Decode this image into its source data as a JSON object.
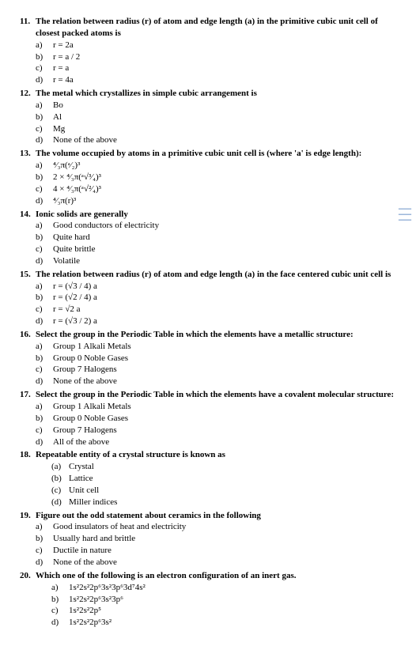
{
  "questions": [
    {
      "num": "11.",
      "stem": "The relation between radius (r) of atom and edge length (a) in the primitive cubic unit cell of closest packed atoms is",
      "opts": [
        {
          "l": "a)",
          "t": "r = 2a"
        },
        {
          "l": "b)",
          "t": "r = a / 2"
        },
        {
          "l": "c)",
          "t": "r = a"
        },
        {
          "l": "d)",
          "t": "r = 4a"
        }
      ]
    },
    {
      "num": "12.",
      "stem": "The metal which crystallizes in simple cubic arrangement is",
      "opts": [
        {
          "l": "a)",
          "t": "Bo"
        },
        {
          "l": "b)",
          "t": "Al"
        },
        {
          "l": "c)",
          "t": "Mg"
        },
        {
          "l": "d)",
          "t": "None of the above"
        }
      ]
    },
    {
      "num": "13.",
      "stem": "The volume occupied by atoms in a primitive cubic unit cell is (where 'a' is edge length):",
      "opts": [
        {
          "l": "a)",
          "t": "⁴⁄₃π(ᵃ⁄₂)³"
        },
        {
          "l": "b)",
          "t": "2 × ⁴⁄₃π(ᵃ√³⁄₄)³"
        },
        {
          "l": "c)",
          "t": "4 × ⁴⁄₃π(ᵃ√²⁄₄)³"
        },
        {
          "l": "d)",
          "t": "⁴⁄₃π(r)³"
        }
      ]
    },
    {
      "num": "14.",
      "stem": "Ionic solids are generally",
      "opts": [
        {
          "l": "a)",
          "t": "Good conductors of electricity"
        },
        {
          "l": "b)",
          "t": "Quite hard"
        },
        {
          "l": "c)",
          "t": "Quite brittle"
        },
        {
          "l": "d)",
          "t": "Volatile"
        }
      ]
    },
    {
      "num": "15.",
      "stem": "The relation between radius (r) of atom and edge length (a) in the face centered cubic unit cell is",
      "opts": [
        {
          "l": "a)",
          "t": "r = (√3 / 4) a"
        },
        {
          "l": "b)",
          "t": "r = (√2 / 4) a"
        },
        {
          "l": "c)",
          "t": "r = √2 a"
        },
        {
          "l": "d)",
          "t": "r = (√3 / 2) a"
        }
      ]
    },
    {
      "num": "16.",
      "stem": "Select the group in the Periodic Table in which the elements have a metallic structure:",
      "opts": [
        {
          "l": "a)",
          "t": "Group 1 Alkali Metals"
        },
        {
          "l": "b)",
          "t": "Group 0 Noble Gases"
        },
        {
          "l": "c)",
          "t": "Group 7 Halogens"
        },
        {
          "l": "d)",
          "t": "None of the above"
        }
      ]
    },
    {
      "num": "17.",
      "stem": "Select the group in the Periodic Table in which the elements have a covalent molecular structure:",
      "opts": [
        {
          "l": "a)",
          "t": "Group 1 Alkali Metals"
        },
        {
          "l": "b)",
          "t": "Group 0 Noble Gases"
        },
        {
          "l": "c)",
          "t": "Group 7 Halogens"
        },
        {
          "l": "d)",
          "t": "All of the above"
        }
      ]
    },
    {
      "num": "18.",
      "stem": "Repeatable entity of a crystal structure is known as",
      "opts": [
        {
          "l": "(a)",
          "t": "Crystal"
        },
        {
          "l": "(b)",
          "t": "Lattice"
        },
        {
          "l": "(c)",
          "t": "Unit cell"
        },
        {
          "l": "(d)",
          "t": "Miller indices"
        }
      ],
      "indent": true
    },
    {
      "num": "19.",
      "stem": "Figure out the odd statement about ceramics in the following",
      "opts": [
        {
          "l": "a)",
          "t": "Good insulators of heat and electricity"
        },
        {
          "l": "b)",
          "t": "Usually hard and brittle"
        },
        {
          "l": "c)",
          "t": "Ductile in nature"
        },
        {
          "l": "d)",
          "t": "None of the above"
        }
      ]
    },
    {
      "num": "20.",
      "stem": "Which one of the following is an electron configuration of an inert gas.",
      "opts": [
        {
          "l": "a)",
          "t": "1s²2s²2p⁶3s²3p⁶3d⁷4s²"
        },
        {
          "l": "b)",
          "t": "1s²2s²2p⁶3s²3p⁶"
        },
        {
          "l": "c)",
          "t": "1s²2s²2p⁵"
        },
        {
          "l": "d)",
          "t": "1s²2s²2p⁶3s²"
        }
      ],
      "indent": true
    }
  ]
}
